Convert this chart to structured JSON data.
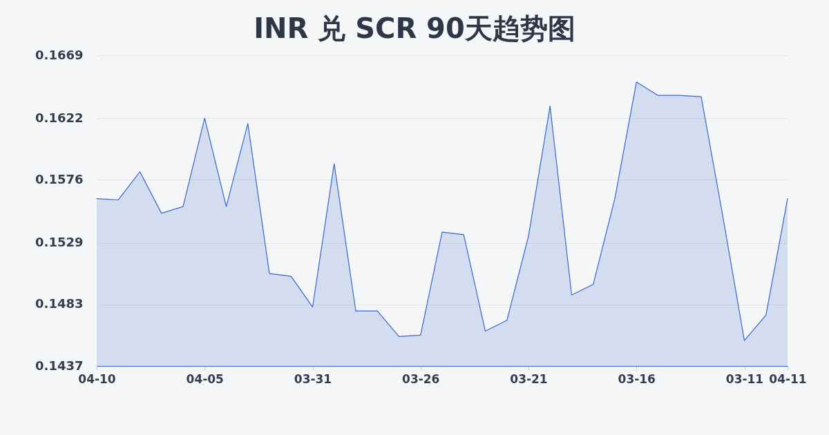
{
  "chart_data": {
    "type": "area",
    "title": "INR 兑 SCR 90天趋势图",
    "categories": [
      "04-10",
      null,
      null,
      null,
      null,
      "04-05",
      null,
      null,
      null,
      null,
      "03-31",
      null,
      null,
      null,
      null,
      "03-26",
      null,
      null,
      null,
      null,
      "03-21",
      null,
      null,
      null,
      null,
      "03-16",
      null,
      null,
      null,
      null,
      "03-11",
      null,
      "04-11"
    ],
    "series": [
      {
        "color": "#3566cc",
        "values": [
          0.1562,
          0.1561,
          0.1582,
          0.1551,
          0.1556,
          0.1622,
          0.1556,
          0.1618,
          0.1506,
          0.1504,
          0.1481,
          0.1588,
          0.1478,
          0.1478,
          0.1459,
          0.146,
          0.1537,
          0.1535,
          0.1463,
          0.1471,
          0.1534,
          0.1631,
          0.149,
          0.1498,
          0.1562,
          0.1649,
          0.1639,
          0.1639,
          0.1638,
          0.1549,
          0.1456,
          0.1475,
          0.1562
        ]
      }
    ],
    "ylim": [
      0.1437,
      0.1669
    ],
    "yticks": [
      0.1437,
      0.1483,
      0.1529,
      0.1576,
      0.1622,
      0.1669
    ],
    "grid": "y"
  }
}
